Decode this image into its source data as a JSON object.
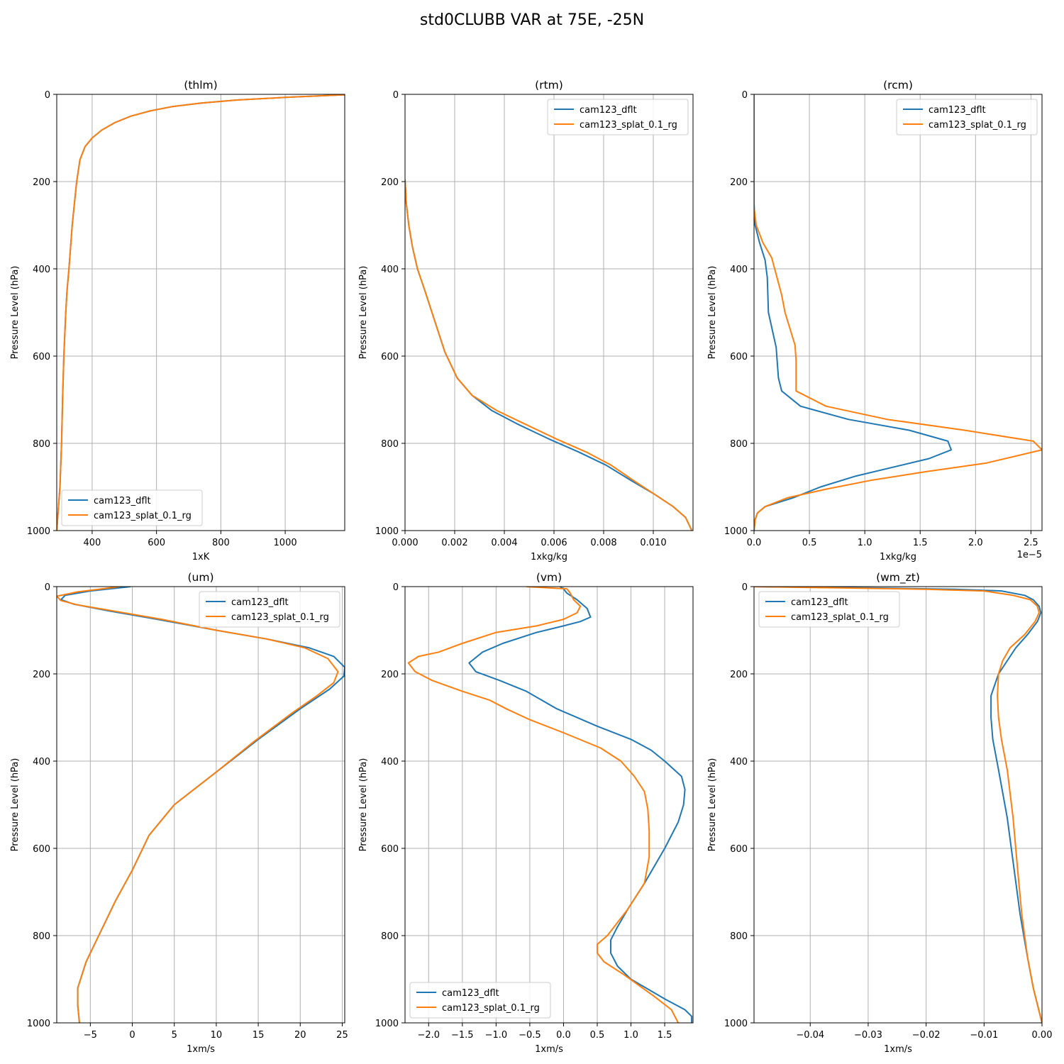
{
  "title": "std0CLUBB VAR at 75E, -25N",
  "colors": {
    "cam123_dflt": "#1f77b4",
    "cam123_splat_0.1_rg": "#ff7f0e",
    "grid": "#b0b0b0"
  },
  "chart_data": [
    {
      "type": "line",
      "title": "(thlm)",
      "xlabel": "1xK",
      "ylabel": "Pressure Level (hPa)",
      "xlim": [
        290,
        1185
      ],
      "ylim": [
        1000,
        0
      ],
      "xticks": [
        400,
        600,
        800,
        1000
      ],
      "xtick_labels": [
        "400",
        "600",
        "800",
        "1000"
      ],
      "yticks": [
        0,
        200,
        400,
        600,
        800,
        1000
      ],
      "ytick_labels": [
        "0",
        "200",
        "400",
        "600",
        "800",
        "1000"
      ],
      "offset_text": "",
      "grid": true,
      "legend": "lower-left",
      "series": [
        {
          "name": "cam123_dflt",
          "x": [
            290,
            300,
            305,
            308,
            312,
            318,
            322,
            328,
            333,
            338,
            345,
            352,
            362,
            378,
            400,
            430,
            470,
            520,
            580,
            650,
            740,
            850,
            1000,
            1185
          ],
          "y": [
            1000,
            900,
            800,
            700,
            600,
            500,
            450,
            400,
            350,
            300,
            250,
            200,
            150,
            120,
            100,
            82,
            65,
            50,
            38,
            28,
            20,
            13,
            7,
            1
          ]
        },
        {
          "name": "cam123_splat_0.1_rg",
          "x": [
            290,
            300,
            305,
            308,
            312,
            318,
            322,
            328,
            333,
            338,
            345,
            352,
            362,
            378,
            400,
            430,
            470,
            520,
            580,
            650,
            740,
            850,
            1000,
            1185
          ],
          "y": [
            1000,
            900,
            800,
            700,
            600,
            500,
            450,
            400,
            350,
            300,
            250,
            200,
            150,
            120,
            100,
            82,
            65,
            50,
            38,
            28,
            20,
            13,
            7,
            1
          ]
        }
      ]
    },
    {
      "type": "line",
      "title": "(rtm)",
      "xlabel": "1xkg/kg",
      "ylabel": "Pressure Level (hPa)",
      "xlim": [
        0,
        0.0116
      ],
      "ylim": [
        1000,
        0
      ],
      "xticks": [
        0,
        0.002,
        0.004,
        0.006,
        0.008,
        0.01
      ],
      "xtick_labels": [
        "0.000",
        "0.002",
        "0.004",
        "0.006",
        "0.008",
        "0.010"
      ],
      "yticks": [
        0,
        200,
        400,
        600,
        800,
        1000
      ],
      "ytick_labels": [
        "0",
        "200",
        "400",
        "600",
        "800",
        "1000"
      ],
      "offset_text": "",
      "grid": true,
      "legend": "top-right",
      "series": [
        {
          "name": "cam123_dflt",
          "x": [
            0.0,
            5e-05,
            0.00015,
            0.0003,
            0.0005,
            0.0008,
            0.0012,
            0.0016,
            0.0021,
            0.0027,
            0.0035,
            0.0045,
            0.0058,
            0.007,
            0.0081,
            0.0091,
            0.01,
            0.0108,
            0.0113,
            0.01155
          ],
          "y": [
            195,
            250,
            300,
            350,
            400,
            450,
            520,
            590,
            650,
            690,
            725,
            755,
            790,
            820,
            850,
            885,
            915,
            945,
            970,
            1000
          ]
        },
        {
          "name": "cam123_splat_0.1_rg",
          "x": [
            0.0,
            5e-05,
            0.00015,
            0.0003,
            0.0005,
            0.0008,
            0.0012,
            0.0016,
            0.0021,
            0.0027,
            0.0037,
            0.0048,
            0.0061,
            0.0073,
            0.0083,
            0.0092,
            0.01,
            0.0108,
            0.0113,
            0.01155
          ],
          "y": [
            195,
            250,
            300,
            350,
            400,
            450,
            520,
            590,
            650,
            690,
            725,
            755,
            790,
            820,
            850,
            885,
            915,
            945,
            970,
            1000
          ]
        }
      ]
    },
    {
      "type": "line",
      "title": "(rcm)",
      "xlabel": "1xkg/kg",
      "ylabel": "Pressure Level (hPa)",
      "xlim": [
        0,
        2.6
      ],
      "ylim": [
        1000,
        0
      ],
      "xticks": [
        0,
        0.5,
        1.0,
        1.5,
        2.0,
        2.5
      ],
      "xtick_labels": [
        "0.0",
        "0.5",
        "1.0",
        "1.5",
        "2.0",
        "2.5"
      ],
      "yticks": [
        0,
        200,
        400,
        600,
        800,
        1000
      ],
      "ytick_labels": [
        "0",
        "200",
        "400",
        "600",
        "800",
        "1000"
      ],
      "offset_text": "1e−5",
      "grid": true,
      "legend": "top-right",
      "series": [
        {
          "name": "cam123_dflt",
          "x": [
            0,
            0,
            0.01,
            0.05,
            0.1,
            0.12,
            0.13,
            0.2,
            0.22,
            0.25,
            0.42,
            0.85,
            1.4,
            1.75,
            1.78,
            1.58,
            1.25,
            0.92,
            0.6,
            0.35,
            0.1,
            0.03,
            0.01,
            0
          ],
          "y": [
            0,
            250,
            300,
            340,
            380,
            420,
            500,
            580,
            650,
            680,
            715,
            745,
            770,
            795,
            815,
            835,
            855,
            875,
            900,
            925,
            945,
            960,
            975,
            1000
          ]
        },
        {
          "name": "cam123_splat_0.1_rg",
          "x": [
            0,
            0,
            0.02,
            0.08,
            0.16,
            0.25,
            0.28,
            0.37,
            0.38,
            0.38,
            0.65,
            1.2,
            1.9,
            2.52,
            2.6,
            2.1,
            1.55,
            1.05,
            0.65,
            0.3,
            0.1,
            0.03,
            0.01,
            0
          ],
          "y": [
            0,
            260,
            300,
            340,
            375,
            460,
            500,
            575,
            610,
            680,
            715,
            745,
            770,
            795,
            815,
            845,
            865,
            885,
            905,
            925,
            945,
            960,
            975,
            1000
          ]
        }
      ]
    },
    {
      "type": "line",
      "title": "(um)",
      "xlabel": "1xm/s",
      "ylabel": "Pressure Level (hPa)",
      "xlim": [
        -9,
        25.3
      ],
      "ylim": [
        1000,
        0
      ],
      "xticks": [
        -5,
        0,
        5,
        10,
        15,
        20,
        25
      ],
      "xtick_labels": [
        "−5",
        "0",
        "5",
        "10",
        "15",
        "20",
        "25"
      ],
      "yticks": [
        0,
        200,
        400,
        600,
        800,
        1000
      ],
      "ytick_labels": [
        "0",
        "200",
        "400",
        "600",
        "800",
        "1000"
      ],
      "offset_text": "",
      "grid": true,
      "legend": "top-right",
      "series": [
        {
          "name": "cam123_dflt",
          "x": [
            -0.2,
            -5,
            -8,
            -8.5,
            -7,
            -3,
            3,
            10,
            16,
            21,
            24,
            25.3,
            25.2,
            23.5,
            20,
            15,
            10,
            5,
            2,
            0,
            -2,
            -4,
            -5.5,
            -6.5,
            -6.5,
            -6.3
          ],
          "y": [
            0,
            10,
            20,
            30,
            40,
            55,
            75,
            100,
            120,
            140,
            160,
            185,
            205,
            235,
            280,
            350,
            425,
            500,
            570,
            650,
            720,
            800,
            860,
            920,
            960,
            1000
          ]
        },
        {
          "name": "cam123_splat_0.1_rg",
          "x": [
            -1.5,
            -6.5,
            -9,
            -8.5,
            -6.5,
            -2.5,
            3.5,
            10,
            16,
            20.5,
            23.3,
            24.5,
            24,
            22,
            19,
            14.5,
            10,
            5,
            2,
            0,
            -2,
            -4,
            -5.5,
            -6.5,
            -6.5,
            -6.3
          ],
          "y": [
            0,
            12,
            22,
            32,
            42,
            55,
            75,
            100,
            120,
            140,
            165,
            195,
            220,
            250,
            290,
            355,
            425,
            500,
            570,
            650,
            720,
            800,
            860,
            920,
            960,
            1000
          ]
        }
      ]
    },
    {
      "type": "line",
      "title": "(vm)",
      "xlabel": "1xm/s",
      "ylabel": "Pressure Level (hPa)",
      "xlim": [
        -2.35,
        1.92
      ],
      "ylim": [
        1000,
        0
      ],
      "xticks": [
        -2.0,
        -1.5,
        -1.0,
        -0.5,
        0.0,
        0.5,
        1.0,
        1.5
      ],
      "xtick_labels": [
        "−2.0",
        "−1.5",
        "−1.0",
        "−0.5",
        "0.0",
        "0.5",
        "1.0",
        "1.5"
      ],
      "yticks": [
        0,
        200,
        400,
        600,
        800,
        1000
      ],
      "ytick_labels": [
        "0",
        "200",
        "400",
        "600",
        "800",
        "1000"
      ],
      "offset_text": "",
      "grid": true,
      "legend": "lower-left",
      "series": [
        {
          "name": "cam123_dflt",
          "x": [
            -0.05,
            0.0,
            0.05,
            0.2,
            0.35,
            0.4,
            0.25,
            0.0,
            -0.4,
            -0.9,
            -1.2,
            -1.4,
            -1.3,
            -0.95,
            -0.55,
            -0.1,
            0.5,
            1.0,
            1.3,
            1.5,
            1.75,
            1.8,
            1.78,
            1.7,
            1.5,
            1.2,
            0.95,
            0.8,
            0.7,
            0.7,
            0.8,
            1.0,
            1.5,
            1.8,
            1.9,
            1.9
          ],
          "y": [
            0,
            5,
            15,
            30,
            50,
            70,
            80,
            90,
            105,
            130,
            150,
            175,
            195,
            215,
            240,
            280,
            320,
            350,
            375,
            400,
            435,
            465,
            500,
            540,
            600,
            680,
            740,
            780,
            810,
            840,
            870,
            900,
            945,
            970,
            985,
            1000
          ]
        },
        {
          "name": "cam123_splat_0.1_rg",
          "x": [
            -0.55,
            0.05,
            0.1,
            0.15,
            0.25,
            0.2,
            0.0,
            -0.4,
            -1.0,
            -1.5,
            -1.85,
            -2.15,
            -2.3,
            -2.2,
            -1.95,
            -1.5,
            -1.1,
            -0.85,
            -0.5,
            0.0,
            0.55,
            0.85,
            1.05,
            1.2,
            1.25,
            1.27,
            1.27,
            1.2,
            0.95,
            0.65,
            0.5,
            0.5,
            0.6,
            0.9,
            1.35,
            1.6,
            1.7
          ],
          "y": [
            0,
            5,
            15,
            30,
            45,
            60,
            75,
            90,
            105,
            130,
            150,
            160,
            175,
            195,
            215,
            240,
            260,
            280,
            305,
            335,
            370,
            400,
            435,
            470,
            510,
            560,
            620,
            680,
            740,
            800,
            820,
            840,
            860,
            890,
            940,
            970,
            1000
          ]
        }
      ]
    },
    {
      "type": "line",
      "title": "(wm_zt)",
      "xlabel": "1xm/s",
      "ylabel": "Pressure Level (hPa)",
      "xlim": [
        -0.0497,
        0.0
      ],
      "ylim": [
        1000,
        0
      ],
      "xticks": [
        -0.04,
        -0.03,
        -0.02,
        -0.01,
        0.0
      ],
      "xtick_labels": [
        "−0.04",
        "−0.03",
        "−0.02",
        "−0.01",
        "0.00"
      ],
      "yticks": [
        0,
        200,
        400,
        600,
        800,
        1000
      ],
      "ytick_labels": [
        "0",
        "200",
        "400",
        "600",
        "800",
        "1000"
      ],
      "offset_text": "",
      "grid": true,
      "legend": "top-left",
      "series": [
        {
          "name": "cam123_dflt",
          "x": [
            -0.0497,
            -0.03,
            -0.015,
            -0.007,
            -0.003,
            -0.0015,
            -0.0005,
            -0.0002,
            -0.0008,
            -0.0025,
            -0.0045,
            -0.006,
            -0.0075,
            -0.0088,
            -0.0088,
            -0.0085,
            -0.0075,
            -0.006,
            -0.0048,
            -0.0038,
            -0.0025,
            -0.0015,
            0.0
          ],
          "y": [
            0,
            3,
            6,
            10,
            20,
            30,
            45,
            60,
            80,
            110,
            140,
            170,
            200,
            250,
            300,
            350,
            420,
            530,
            650,
            750,
            850,
            920,
            1000
          ]
        },
        {
          "name": "cam123_splat_0.1_rg",
          "x": [
            -0.0497,
            -0.035,
            -0.02,
            -0.01,
            -0.005,
            -0.002,
            -0.0008,
            -0.0005,
            -0.0012,
            -0.003,
            -0.0055,
            -0.0068,
            -0.0075,
            -0.0077,
            -0.0075,
            -0.007,
            -0.006,
            -0.005,
            -0.0042,
            -0.0035,
            -0.0025,
            -0.0015,
            0.0
          ],
          "y": [
            0,
            3,
            6,
            10,
            20,
            30,
            45,
            60,
            80,
            110,
            140,
            170,
            200,
            250,
            300,
            350,
            420,
            530,
            650,
            750,
            850,
            920,
            1000
          ]
        }
      ]
    }
  ]
}
